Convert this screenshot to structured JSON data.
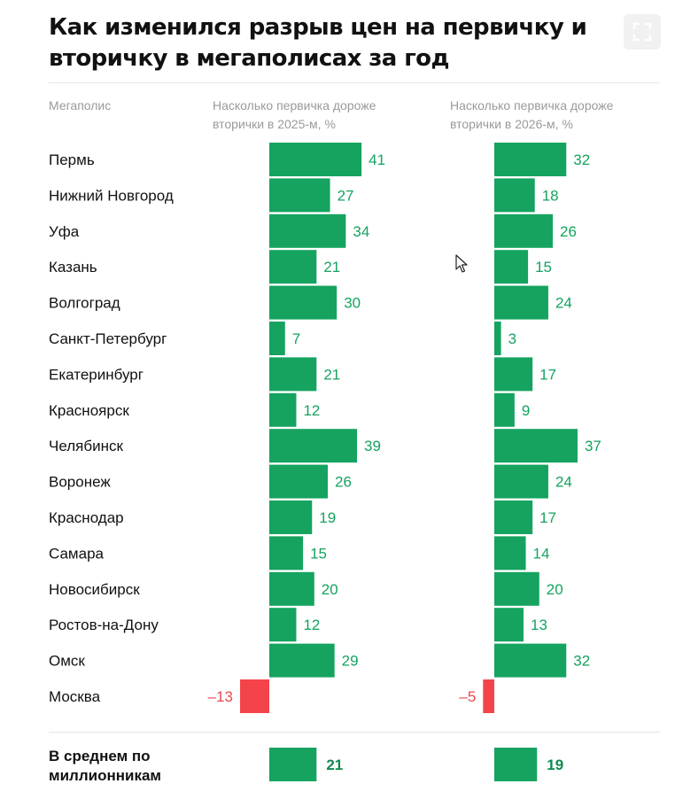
{
  "title": "Как изменился разрыв цен на первичку и вторичку в мегаполисах за год",
  "columns": {
    "city": "Мегаполис",
    "y2025": "Насколько первичка дороже вторички в 2025-м, %",
    "y2026": "Насколько первичка дороже вторички в 2026-м, %"
  },
  "average": {
    "label": "В среднем по миллионникам",
    "v2025": "21",
    "v2026": "19"
  },
  "colors": {
    "positive": "#15A35F",
    "negative": "#F4444A",
    "positive_text": "#15A35F",
    "negative_text": "#E84A4F",
    "avg_text": "#0E8A50"
  },
  "icons": {
    "expand": "expand-icon",
    "cursor": "mouse-pointer-icon"
  },
  "chart_data": [
    {
      "type": "bar",
      "orientation": "horizontal",
      "categories": [
        "Пермь",
        "Нижний Новгород",
        "Уфа",
        "Казань",
        "Волгоград",
        "Санкт-Петербург",
        "Екатеринбург",
        "Красноярск",
        "Челябинск",
        "Воронеж",
        "Краснодар",
        "Самара",
        "Новосибирск",
        "Ростов-на-Дону",
        "Омск",
        "Москва"
      ],
      "values": [
        41,
        27,
        34,
        21,
        30,
        7,
        21,
        12,
        39,
        26,
        19,
        15,
        20,
        12,
        29,
        -13
      ],
      "value_labels": [
        "41",
        "27",
        "34",
        "21",
        "30",
        "7",
        "21",
        "12",
        "39",
        "26",
        "19",
        "15",
        "20",
        "12",
        "29",
        "–13"
      ],
      "average": 21,
      "title": "Насколько первичка дороже вторички в 2025-м, %"
    },
    {
      "type": "bar",
      "orientation": "horizontal",
      "categories": [
        "Пермь",
        "Нижний Новгород",
        "Уфа",
        "Казань",
        "Волгоград",
        "Санкт-Петербург",
        "Екатеринбург",
        "Красноярск",
        "Челябинск",
        "Воронеж",
        "Краснодар",
        "Самара",
        "Новосибирск",
        "Ростов-на-Дону",
        "Омск",
        "Москва"
      ],
      "values": [
        32,
        18,
        26,
        15,
        24,
        3,
        17,
        9,
        37,
        24,
        17,
        14,
        20,
        13,
        32,
        -5
      ],
      "value_labels": [
        "32",
        "18",
        "26",
        "15",
        "24",
        "3",
        "17",
        "9",
        "37",
        "24",
        "17",
        "14",
        "20",
        "13",
        "32",
        "–5"
      ],
      "average": 19,
      "title": "Насколько первичка дороже вторички в 2026-м, %"
    }
  ]
}
